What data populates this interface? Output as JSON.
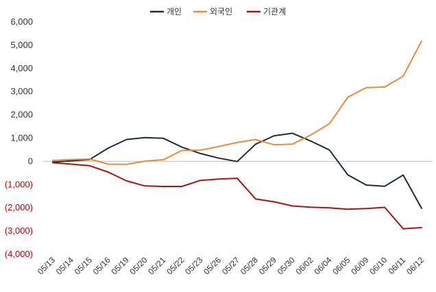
{
  "chart_data": {
    "type": "line",
    "categories": [
      "05/13",
      "05/14",
      "05/15",
      "05/16",
      "05/19",
      "05/20",
      "05/21",
      "05/22",
      "05/23",
      "05/26",
      "05/27",
      "05/28",
      "05/29",
      "05/30",
      "06/02",
      "06/04",
      "06/05",
      "06/09",
      "06/10",
      "06/11",
      "06/12"
    ],
    "series": [
      {
        "name": "개인",
        "color": "#1f2a3c",
        "values": [
          -30,
          20,
          80,
          570,
          940,
          1020,
          990,
          610,
          340,
          140,
          -10,
          740,
          1100,
          1210,
          870,
          490,
          -580,
          -1020,
          -1070,
          -590,
          -2020
        ]
      },
      {
        "name": "외국인",
        "color": "#ed8a38",
        "values": [
          40,
          80,
          100,
          -120,
          -130,
          10,
          70,
          470,
          480,
          640,
          810,
          940,
          710,
          740,
          1140,
          1620,
          2760,
          3170,
          3200,
          3660,
          5180
        ]
      },
      {
        "name": "기관계",
        "color": "#b01010",
        "values": [
          -60,
          -120,
          -190,
          -460,
          -840,
          -1060,
          -1080,
          -1080,
          -820,
          -760,
          -730,
          -1620,
          -1740,
          -1920,
          -1970,
          -2000,
          -2060,
          -2030,
          -1980,
          -2900,
          -2850
        ]
      }
    ],
    "y_ticks": [
      "6,000",
      "5,000",
      "4,000",
      "3,000",
      "2,000",
      "1,000",
      "0",
      "(1,000)",
      "(2,000)",
      "(3,000)",
      "(4,000)"
    ],
    "ylim": [
      -4000,
      6000
    ],
    "grid": false,
    "legend_position": "top-center"
  }
}
